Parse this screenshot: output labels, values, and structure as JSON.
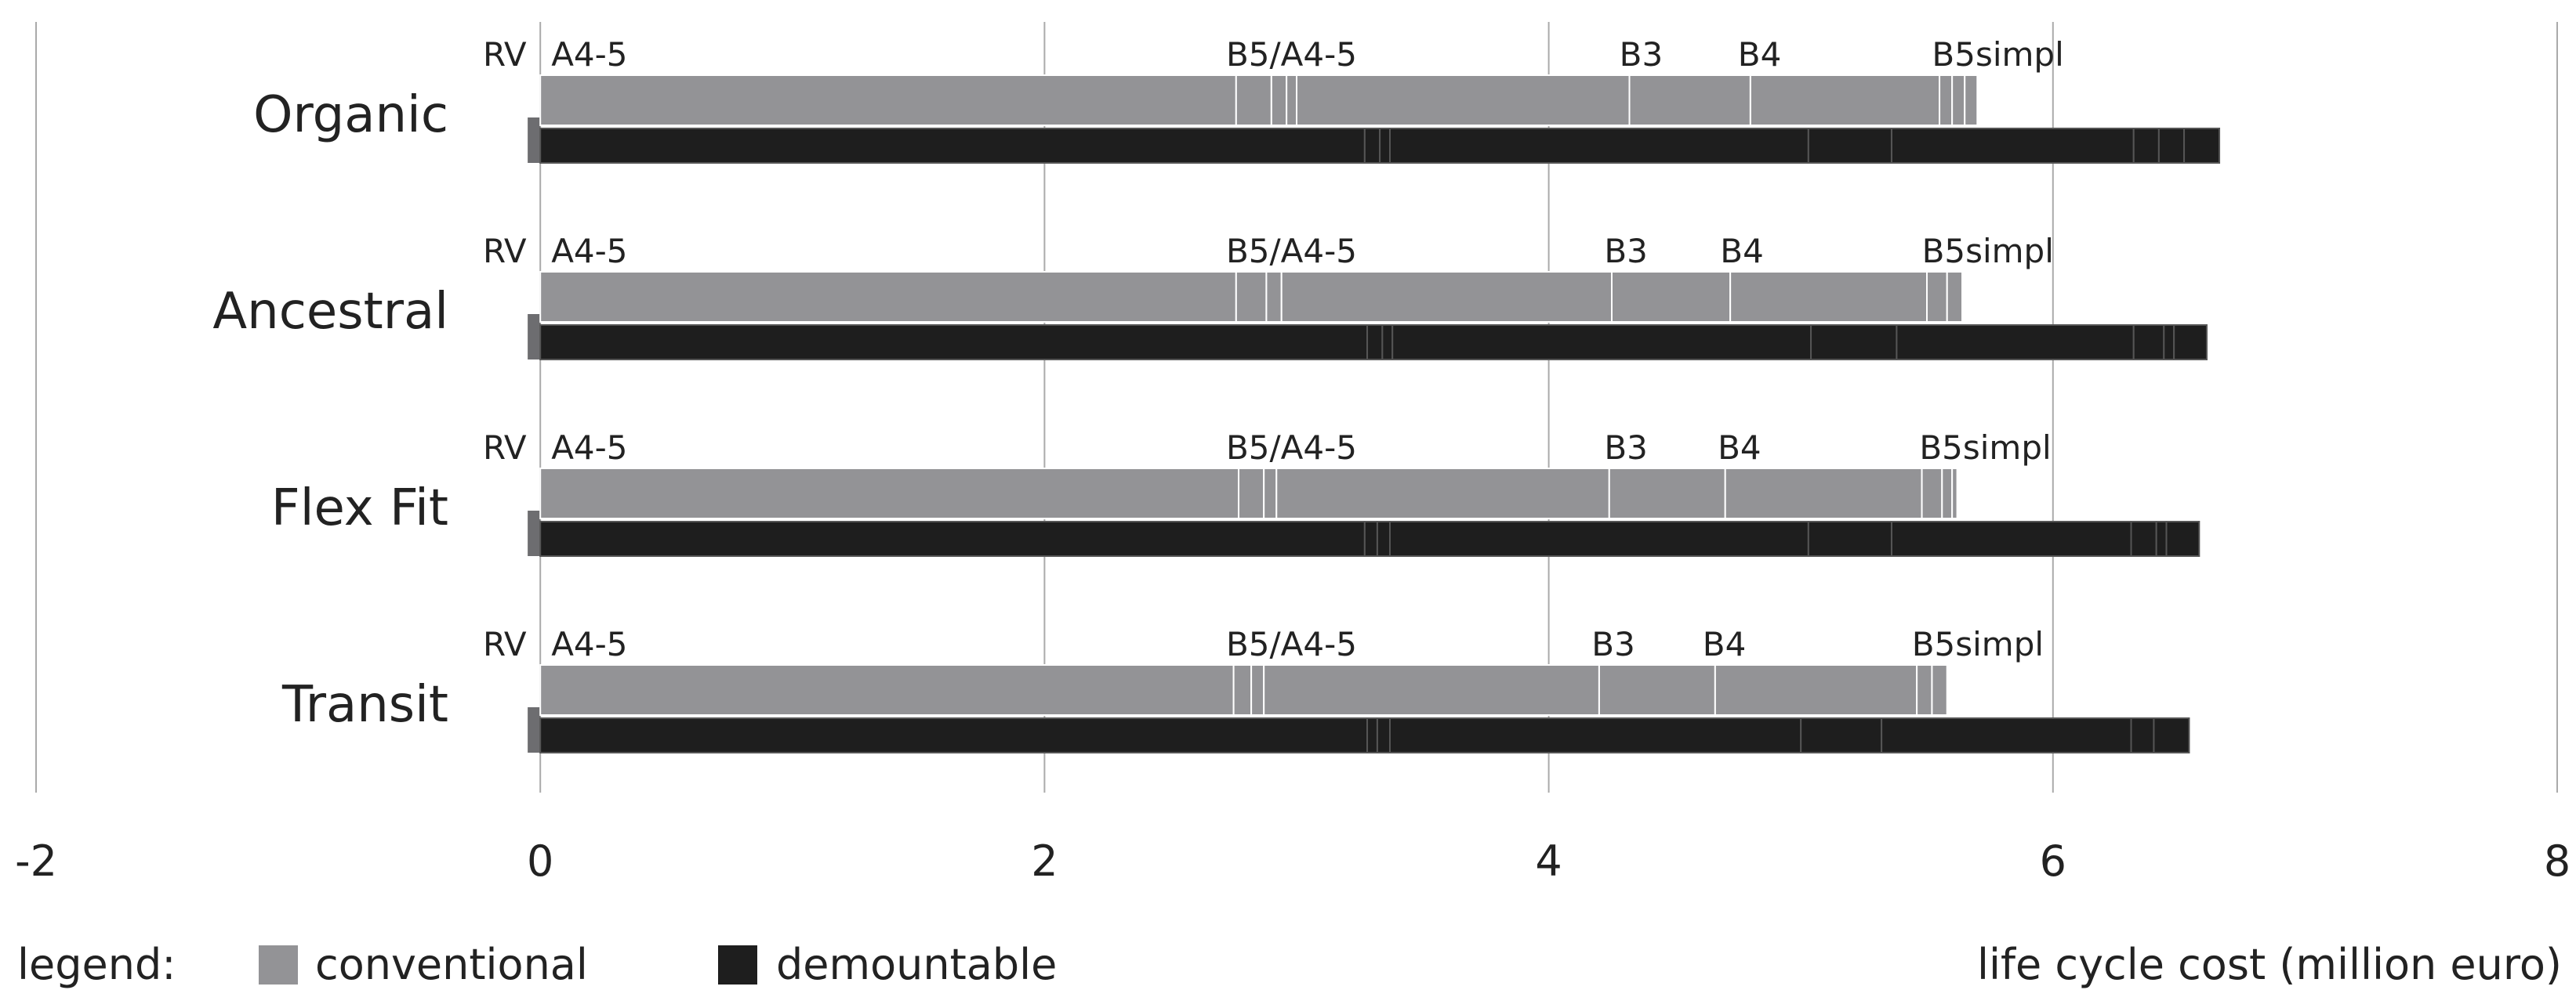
{
  "chart_data": {
    "type": "bar",
    "orientation": "horizontal",
    "stacked": true,
    "xlim": [
      -2,
      8
    ],
    "xticks": [
      "-2",
      "0",
      "2",
      "4",
      "6",
      "8"
    ],
    "xlabel": "life cycle cost (million euro)",
    "grid": true,
    "legend": {
      "position": "bottom-left",
      "title": "legend:",
      "entries": [
        {
          "name": "conventional",
          "color": "#939396"
        },
        {
          "name": "demountable",
          "color": "#1e1e1e"
        }
      ]
    },
    "segment_labels": [
      "RV",
      "A4-5",
      "B5/A4-5",
      "B3",
      "B4",
      "B5simpl"
    ],
    "categories": [
      {
        "name": "Organic",
        "label_positions": [
          2.72,
          4.28,
          4.75,
          5.52
        ],
        "conventional": {
          "rv": -0.05,
          "cum": [
            2.76,
            2.9,
            2.96,
            3.0,
            4.32,
            4.8,
            5.55,
            5.6,
            5.65,
            5.7
          ]
        },
        "demountable": {
          "rv": -0.05,
          "cum": [
            3.27,
            3.33,
            3.37,
            5.03,
            5.36,
            6.32,
            6.42,
            6.52,
            6.66
          ]
        }
      },
      {
        "name": "Ancestral",
        "label_positions": [
          2.72,
          4.22,
          4.68,
          5.48
        ],
        "conventional": {
          "rv": -0.05,
          "cum": [
            2.76,
            2.88,
            2.94,
            4.25,
            4.72,
            5.5,
            5.58,
            5.64
          ]
        },
        "demountable": {
          "rv": -0.05,
          "cum": [
            3.28,
            3.34,
            3.38,
            5.04,
            5.38,
            6.32,
            6.44,
            6.48,
            6.61
          ]
        }
      },
      {
        "name": "Flex Fit",
        "label_positions": [
          2.72,
          4.22,
          4.67,
          5.47
        ],
        "conventional": {
          "rv": -0.05,
          "cum": [
            2.77,
            2.87,
            2.92,
            4.24,
            4.7,
            5.48,
            5.56,
            5.6,
            5.62
          ]
        },
        "demountable": {
          "rv": -0.05,
          "cum": [
            3.27,
            3.32,
            3.37,
            5.03,
            5.36,
            6.31,
            6.41,
            6.45,
            6.58
          ]
        }
      },
      {
        "name": "Transit",
        "label_positions": [
          2.72,
          4.17,
          4.61,
          5.44
        ],
        "conventional": {
          "rv": -0.05,
          "cum": [
            2.75,
            2.82,
            2.87,
            4.2,
            4.66,
            5.46,
            5.52,
            5.58
          ]
        },
        "demountable": {
          "rv": -0.05,
          "cum": [
            3.28,
            3.32,
            3.37,
            5.0,
            5.32,
            6.31,
            6.4,
            6.54
          ]
        }
      }
    ]
  }
}
